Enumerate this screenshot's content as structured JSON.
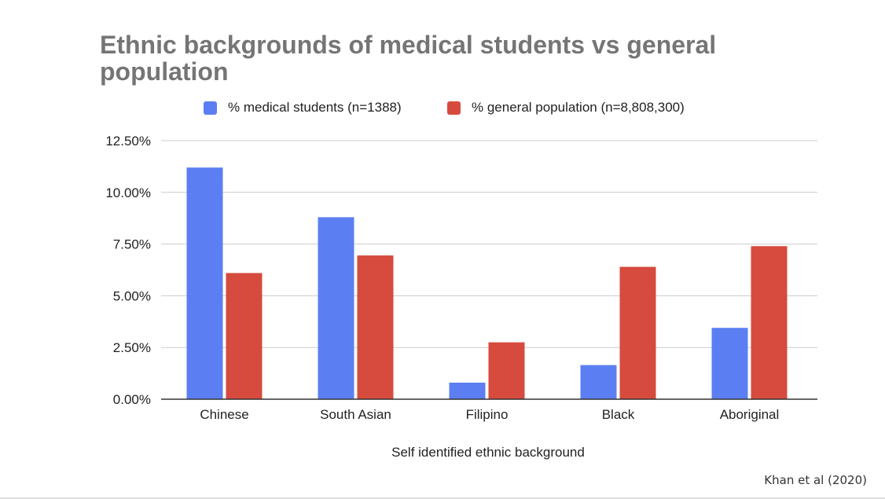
{
  "chart_data": {
    "type": "bar",
    "title": "Ethnic backgrounds of medical students vs general population",
    "xlabel": "Self identified ethnic background",
    "ylabel": "",
    "categories": [
      "Chinese",
      "South Asian",
      "Filipino",
      "Black",
      "Aboriginal"
    ],
    "series": [
      {
        "name": "% medical students (n=1388)",
        "color": "#5b7ff2",
        "values": [
          11.2,
          8.8,
          0.8,
          1.65,
          3.45
        ]
      },
      {
        "name": "% general population (n=8,808,300)",
        "color": "#d64b3e",
        "values": [
          6.1,
          6.95,
          2.75,
          6.4,
          7.4
        ]
      }
    ],
    "ylim": [
      0,
      12.5
    ],
    "yticks": [
      {
        "value": 0,
        "label": "0.00%"
      },
      {
        "value": 2.5,
        "label": "2.50%"
      },
      {
        "value": 5,
        "label": "5.00%"
      },
      {
        "value": 7.5,
        "label": "7.50%"
      },
      {
        "value": 10,
        "label": "10.00%"
      },
      {
        "value": 12.5,
        "label": "12.50%"
      }
    ],
    "grid": true,
    "legend_position": "top"
  },
  "source": "Khan et al (2020)"
}
